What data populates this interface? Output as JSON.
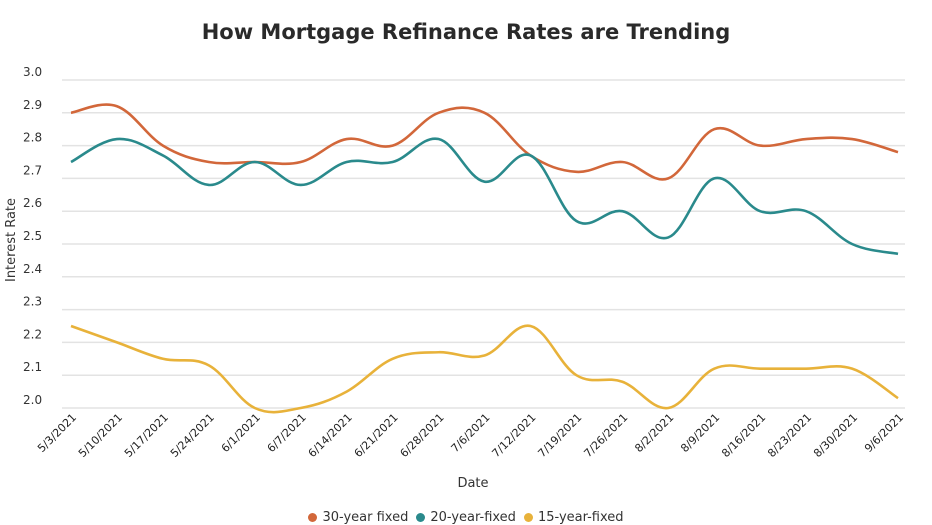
{
  "chart_data": {
    "type": "line",
    "title": "How Mortgage Refinance Rates are Trending",
    "xlabel": "Date",
    "ylabel": "Interest Rate",
    "ylim": [
      2.0,
      3.0
    ],
    "yticks": [
      "3.0",
      "2.9",
      "2.8",
      "2.7",
      "2.6",
      "2.5",
      "2.4",
      "2.3",
      "2.2",
      "2.1",
      "2.0"
    ],
    "grid": true,
    "legend_position": "bottom",
    "categories": [
      "5/3/2021",
      "5/10/2021",
      "5/17/2021",
      "5/24/2021",
      "6/1/2021",
      "6/7/2021",
      "6/14/2021",
      "6/21/2021",
      "6/28/2021",
      "7/6/2021",
      "7/12/2021",
      "7/19/2021",
      "7/26/2021",
      "8/2/2021",
      "8/9/2021",
      "8/16/2021",
      "8/23/2021",
      "8/30/2021",
      "9/6/2021"
    ],
    "series": [
      {
        "name": "30-year fixed",
        "color": "#d2673a",
        "values": [
          2.9,
          2.92,
          2.8,
          2.75,
          2.75,
          2.75,
          2.82,
          2.8,
          2.9,
          2.9,
          2.77,
          2.72,
          2.75,
          2.7,
          2.85,
          2.8,
          2.82,
          2.82,
          2.78
        ]
      },
      {
        "name": "20-year-fixed",
        "color": "#2a8a8c",
        "values": [
          2.75,
          2.82,
          2.77,
          2.68,
          2.75,
          2.68,
          2.75,
          2.75,
          2.82,
          2.69,
          2.77,
          2.57,
          2.6,
          2.52,
          2.7,
          2.6,
          2.6,
          2.5,
          2.47
        ]
      },
      {
        "name": "15-year-fixed",
        "color": "#e8b23a",
        "values": [
          2.25,
          2.2,
          2.15,
          2.13,
          2.0,
          2.0,
          2.05,
          2.15,
          2.17,
          2.16,
          2.25,
          2.1,
          2.08,
          2.0,
          2.12,
          2.12,
          2.12,
          2.12,
          2.03
        ]
      }
    ]
  }
}
